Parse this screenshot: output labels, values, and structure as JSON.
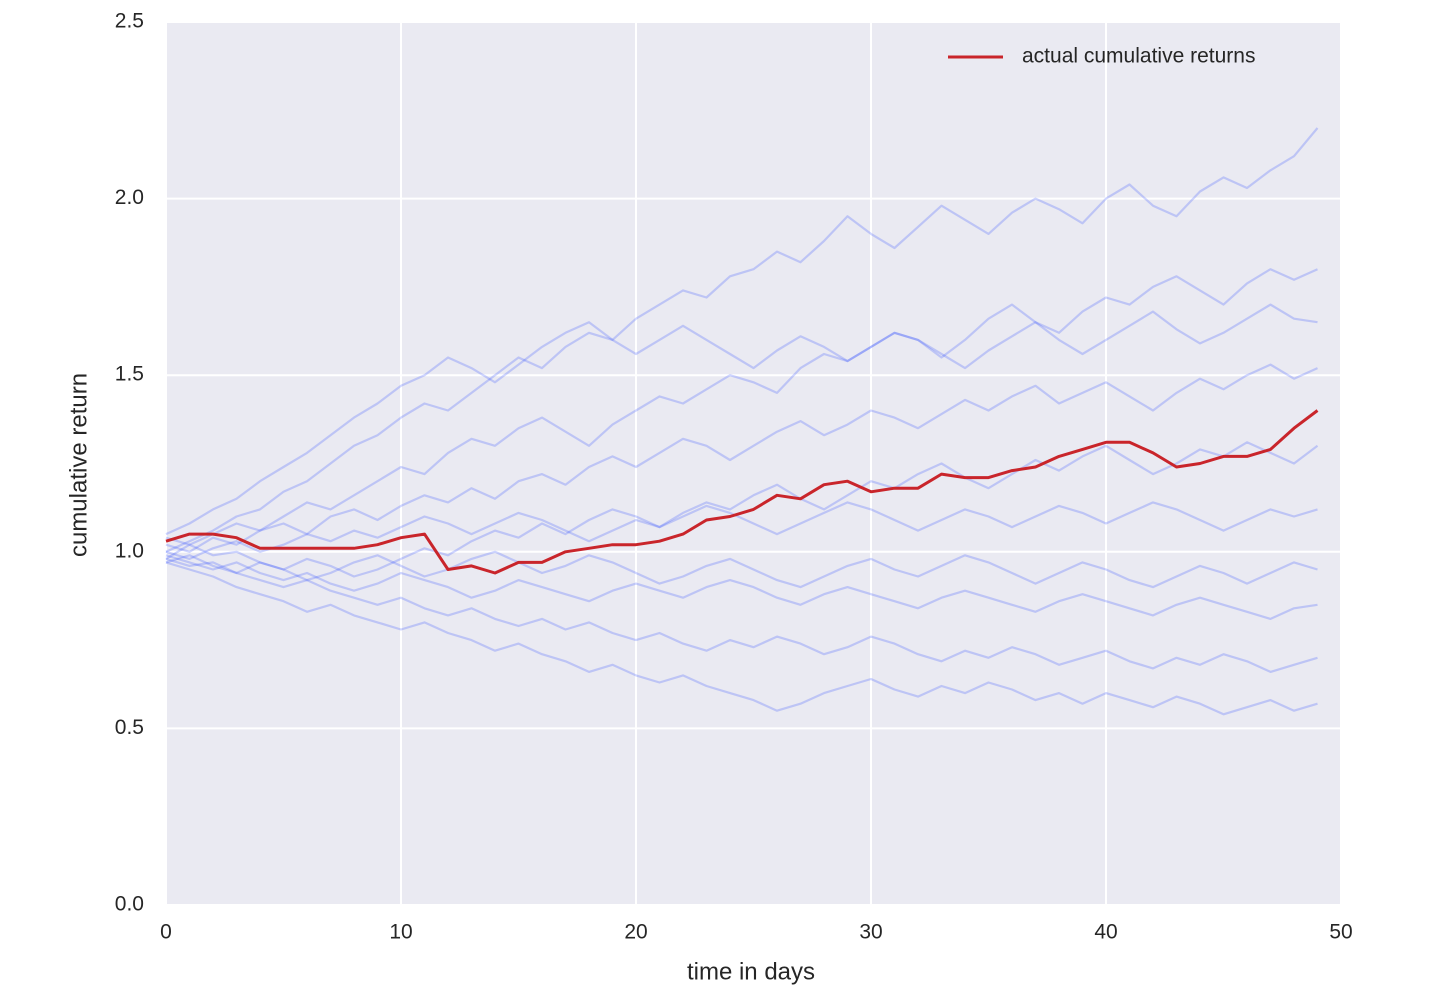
{
  "chart_data": {
    "type": "line",
    "xlabel": "time in days",
    "ylabel": "cumulative return",
    "x": [
      0,
      1,
      2,
      3,
      4,
      5,
      6,
      7,
      8,
      9,
      10,
      11,
      12,
      13,
      14,
      15,
      16,
      17,
      18,
      19,
      20,
      21,
      22,
      23,
      24,
      25,
      26,
      27,
      28,
      29,
      30,
      31,
      32,
      33,
      34,
      35,
      36,
      37,
      38,
      39,
      40,
      41,
      42,
      43,
      44,
      45,
      46,
      47,
      48,
      49
    ],
    "xlim": [
      0,
      50
    ],
    "xticks": [
      0,
      10,
      20,
      30,
      40,
      50
    ],
    "ylim": [
      0,
      2.5
    ],
    "yticks": [
      {
        "value": 0,
        "label": "0.0"
      },
      0.5,
      {
        "value": 1,
        "label": "1.0"
      },
      1.5,
      {
        "value": 2,
        "label": "2.0"
      },
      2.5
    ],
    "grid": true,
    "legend": "upper right",
    "series": [
      {
        "color": "#1f3fff",
        "values": [
          1.0,
          1.03,
          1.06,
          1.1,
          1.12,
          1.17,
          1.2,
          1.25,
          1.3,
          1.33,
          1.38,
          1.42,
          1.4,
          1.45,
          1.5,
          1.55,
          1.52,
          1.58,
          1.62,
          1.6,
          1.66,
          1.7,
          1.74,
          1.72,
          1.78,
          1.8,
          1.85,
          1.82,
          1.88,
          1.95,
          1.9,
          1.86,
          1.92,
          1.98,
          1.94,
          1.9,
          1.96,
          2.0,
          1.97,
          1.93,
          2.0,
          2.04,
          1.98,
          1.95,
          2.02,
          2.06,
          2.03,
          2.08,
          2.12,
          2.2
        ]
      },
      {
        "color": "#1f3fff",
        "values": [
          0.98,
          1.02,
          1.05,
          1.08,
          1.06,
          1.1,
          1.14,
          1.12,
          1.16,
          1.2,
          1.24,
          1.22,
          1.28,
          1.32,
          1.3,
          1.35,
          1.38,
          1.34,
          1.3,
          1.36,
          1.4,
          1.44,
          1.42,
          1.46,
          1.5,
          1.48,
          1.45,
          1.52,
          1.56,
          1.54,
          1.58,
          1.62,
          1.6,
          1.55,
          1.6,
          1.66,
          1.7,
          1.65,
          1.62,
          1.68,
          1.72,
          1.7,
          1.75,
          1.78,
          1.74,
          1.7,
          1.76,
          1.8,
          1.77,
          1.8
        ]
      },
      {
        "color": "#1f3fff",
        "values": [
          1.02,
          1.0,
          1.04,
          1.02,
          1.06,
          1.08,
          1.05,
          1.1,
          1.12,
          1.09,
          1.13,
          1.16,
          1.14,
          1.18,
          1.15,
          1.2,
          1.22,
          1.19,
          1.24,
          1.27,
          1.24,
          1.28,
          1.32,
          1.3,
          1.26,
          1.3,
          1.34,
          1.37,
          1.33,
          1.36,
          1.4,
          1.38,
          1.35,
          1.39,
          1.43,
          1.4,
          1.44,
          1.47,
          1.42,
          1.45,
          1.48,
          1.44,
          1.4,
          1.45,
          1.49,
          1.46,
          1.5,
          1.53,
          1.49,
          1.52
        ]
      },
      {
        "color": "#1f3fff",
        "values": [
          1.04,
          1.02,
          0.99,
          1.0,
          0.97,
          0.95,
          0.98,
          0.96,
          0.93,
          0.95,
          0.98,
          1.01,
          0.99,
          1.03,
          1.06,
          1.04,
          1.08,
          1.05,
          1.09,
          1.12,
          1.1,
          1.07,
          1.11,
          1.14,
          1.12,
          1.16,
          1.19,
          1.15,
          1.12,
          1.16,
          1.2,
          1.18,
          1.22,
          1.25,
          1.21,
          1.18,
          1.22,
          1.26,
          1.23,
          1.27,
          1.3,
          1.26,
          1.22,
          1.25,
          1.29,
          1.27,
          1.31,
          1.28,
          1.25,
          1.3
        ]
      },
      {
        "color": "#1f3fff",
        "values": [
          1.0,
          0.98,
          1.01,
          1.03,
          1.0,
          1.02,
          1.05,
          1.03,
          1.06,
          1.04,
          1.07,
          1.1,
          1.08,
          1.05,
          1.08,
          1.11,
          1.09,
          1.06,
          1.03,
          1.06,
          1.09,
          1.07,
          1.1,
          1.13,
          1.11,
          1.08,
          1.05,
          1.08,
          1.11,
          1.14,
          1.12,
          1.09,
          1.06,
          1.09,
          1.12,
          1.1,
          1.07,
          1.1,
          1.13,
          1.11,
          1.08,
          1.11,
          1.14,
          1.12,
          1.09,
          1.06,
          1.09,
          1.12,
          1.1,
          1.12
        ]
      },
      {
        "color": "#1f3fff",
        "values": [
          0.97,
          0.99,
          0.96,
          0.94,
          0.97,
          0.95,
          0.92,
          0.94,
          0.97,
          0.99,
          0.96,
          0.93,
          0.95,
          0.98,
          1.0,
          0.97,
          0.94,
          0.96,
          0.99,
          0.97,
          0.94,
          0.91,
          0.93,
          0.96,
          0.98,
          0.95,
          0.92,
          0.9,
          0.93,
          0.96,
          0.98,
          0.95,
          0.93,
          0.96,
          0.99,
          0.97,
          0.94,
          0.91,
          0.94,
          0.97,
          0.95,
          0.92,
          0.9,
          0.93,
          0.96,
          0.94,
          0.91,
          0.94,
          0.97,
          0.95
        ]
      },
      {
        "color": "#1f3fff",
        "values": [
          0.99,
          0.97,
          0.95,
          0.97,
          0.94,
          0.92,
          0.94,
          0.91,
          0.89,
          0.91,
          0.94,
          0.92,
          0.9,
          0.87,
          0.89,
          0.92,
          0.9,
          0.88,
          0.86,
          0.89,
          0.91,
          0.89,
          0.87,
          0.9,
          0.92,
          0.9,
          0.87,
          0.85,
          0.88,
          0.9,
          0.88,
          0.86,
          0.84,
          0.87,
          0.89,
          0.87,
          0.85,
          0.83,
          0.86,
          0.88,
          0.86,
          0.84,
          0.82,
          0.85,
          0.87,
          0.85,
          0.83,
          0.81,
          0.84,
          0.85
        ]
      },
      {
        "color": "#1f3fff",
        "values": [
          0.98,
          0.96,
          0.97,
          0.94,
          0.92,
          0.9,
          0.92,
          0.89,
          0.87,
          0.85,
          0.87,
          0.84,
          0.82,
          0.84,
          0.81,
          0.79,
          0.81,
          0.78,
          0.8,
          0.77,
          0.75,
          0.77,
          0.74,
          0.72,
          0.75,
          0.73,
          0.76,
          0.74,
          0.71,
          0.73,
          0.76,
          0.74,
          0.71,
          0.69,
          0.72,
          0.7,
          0.73,
          0.71,
          0.68,
          0.7,
          0.72,
          0.69,
          0.67,
          0.7,
          0.68,
          0.71,
          0.69,
          0.66,
          0.68,
          0.7
        ]
      },
      {
        "color": "#1f3fff",
        "values": [
          0.97,
          0.95,
          0.93,
          0.9,
          0.88,
          0.86,
          0.83,
          0.85,
          0.82,
          0.8,
          0.78,
          0.8,
          0.77,
          0.75,
          0.72,
          0.74,
          0.71,
          0.69,
          0.66,
          0.68,
          0.65,
          0.63,
          0.65,
          0.62,
          0.6,
          0.58,
          0.55,
          0.57,
          0.6,
          0.62,
          0.64,
          0.61,
          0.59,
          0.62,
          0.6,
          0.63,
          0.61,
          0.58,
          0.6,
          0.57,
          0.6,
          0.58,
          0.56,
          0.59,
          0.57,
          0.54,
          0.56,
          0.58,
          0.55,
          0.57
        ]
      },
      {
        "color": "#1f3fff",
        "values": [
          1.05,
          1.08,
          1.12,
          1.15,
          1.2,
          1.24,
          1.28,
          1.33,
          1.38,
          1.42,
          1.47,
          1.5,
          1.55,
          1.52,
          1.48,
          1.53,
          1.58,
          1.62,
          1.65,
          1.6,
          1.56,
          1.6,
          1.64,
          1.6,
          1.56,
          1.52,
          1.57,
          1.61,
          1.58,
          1.54,
          1.58,
          1.62,
          1.6,
          1.56,
          1.52,
          1.57,
          1.61,
          1.65,
          1.6,
          1.56,
          1.6,
          1.64,
          1.68,
          1.63,
          1.59,
          1.62,
          1.66,
          1.7,
          1.66,
          1.65
        ]
      },
      {
        "name": "actual cumulative returns",
        "color": "#c9252b",
        "values": [
          1.03,
          1.05,
          1.05,
          1.04,
          1.01,
          1.01,
          1.01,
          1.01,
          1.01,
          1.02,
          1.04,
          1.05,
          0.95,
          0.96,
          0.94,
          0.97,
          0.97,
          1.0,
          1.01,
          1.02,
          1.02,
          1.03,
          1.05,
          1.09,
          1.1,
          1.12,
          1.16,
          1.15,
          1.19,
          1.2,
          1.17,
          1.18,
          1.18,
          1.22,
          1.21,
          1.21,
          1.23,
          1.24,
          1.27,
          1.29,
          1.31,
          1.31,
          1.28,
          1.24,
          1.25,
          1.27,
          1.27,
          1.29,
          1.35,
          1.4
        ]
      }
    ]
  }
}
